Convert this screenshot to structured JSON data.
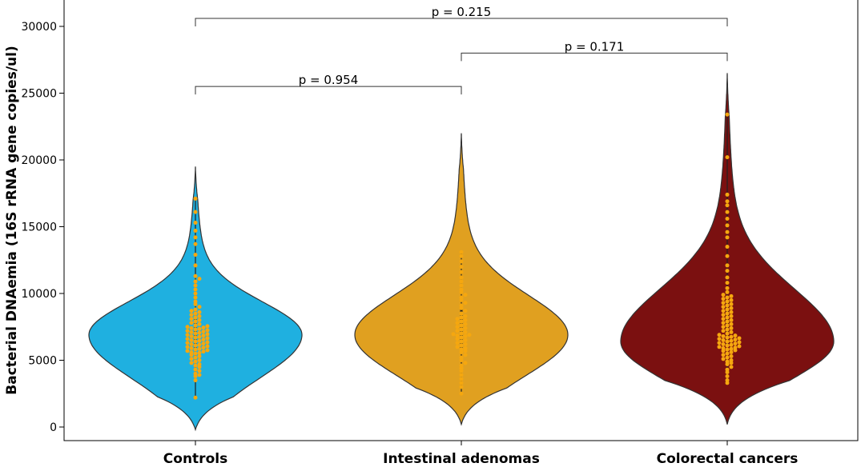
{
  "chart_data": {
    "type": "violin",
    "ylabel": "Bacterial DNAemia (16S rRNA gene copies/ul)",
    "xlabel": "",
    "ylim": [
      -500,
      32000
    ],
    "yticks": [
      0,
      5000,
      10000,
      15000,
      20000,
      25000,
      30000
    ],
    "ytick_labels": [
      "0",
      "5000",
      "10000",
      "15000",
      "20000",
      "25000",
      "30000"
    ],
    "categories": [
      "Controls",
      "Intestinal adenomas",
      "Colorectal cancers"
    ],
    "grid": false,
    "groups": [
      {
        "name": "Controls",
        "color": "#1fb0e0",
        "point_color": "#f5a70f",
        "range": [
          -200,
          19500
        ],
        "mode": 6900,
        "points": [
          2200,
          3500,
          3800,
          3900,
          4000,
          4200,
          4300,
          4500,
          4600,
          4700,
          4800,
          4900,
          5000,
          5100,
          5200,
          5300,
          5400,
          5500,
          5550,
          5600,
          5650,
          5700,
          5750,
          5800,
          5850,
          5900,
          5950,
          6000,
          6050,
          6100,
          6150,
          6200,
          6250,
          6300,
          6350,
          6400,
          6450,
          6500,
          6550,
          6600,
          6650,
          6700,
          6750,
          6800,
          6850,
          6900,
          6950,
          7000,
          7050,
          7100,
          7150,
          7200,
          7250,
          7300,
          7350,
          7400,
          7450,
          7500,
          7550,
          7600,
          7700,
          7800,
          7900,
          8000,
          8100,
          8200,
          8300,
          8400,
          8500,
          8600,
          8700,
          8800,
          9000,
          9200,
          9400,
          9700,
          10000,
          10300,
          10600,
          10900,
          11100,
          11300,
          12100,
          12900,
          13700,
          14200,
          14700,
          15300,
          16100,
          17100
        ]
      },
      {
        "name": "Intestinal adenomas",
        "color": "#e0a020",
        "point_color": "#f5a70f",
        "range": [
          200,
          22000
        ],
        "mode": 6900,
        "points": [
          2500,
          3000,
          3300,
          3600,
          3900,
          4200,
          4400,
          4600,
          4800,
          5000,
          5200,
          5400,
          5600,
          5700,
          5800,
          5900,
          6000,
          6100,
          6200,
          6300,
          6400,
          6500,
          6600,
          6700,
          6800,
          6850,
          6900,
          6950,
          7000,
          7100,
          7200,
          7300,
          7400,
          7500,
          7600,
          7700,
          7800,
          7900,
          8000,
          8100,
          8200,
          8300,
          8500,
          8700,
          8900,
          9100,
          9300,
          9500,
          9700,
          9900,
          10100,
          10300,
          10600,
          10900,
          11200,
          11600,
          12000,
          12400,
          12800,
          13100
        ]
      },
      {
        "name": "Colorectal cancers",
        "color": "#7b1010",
        "point_color": "#f5a70f",
        "range": [
          200,
          26500
        ],
        "mode": 6400,
        "points": [
          3300,
          3500,
          3800,
          4100,
          4300,
          4500,
          4700,
          4800,
          4900,
          5000,
          5100,
          5200,
          5300,
          5400,
          5500,
          5600,
          5700,
          5750,
          5800,
          5850,
          5900,
          5950,
          6000,
          6050,
          6100,
          6150,
          6200,
          6250,
          6300,
          6350,
          6400,
          6450,
          6500,
          6550,
          6600,
          6650,
          6700,
          6750,
          6800,
          6850,
          6900,
          7000,
          7100,
          7200,
          7300,
          7400,
          7500,
          7600,
          7700,
          7800,
          7900,
          8000,
          8100,
          8200,
          8300,
          8400,
          8500,
          8600,
          8700,
          8800,
          8900,
          9000,
          9100,
          9200,
          9300,
          9400,
          9500,
          9600,
          9700,
          9800,
          9900,
          10100,
          10400,
          10800,
          11200,
          11700,
          12100,
          12800,
          13500,
          14200,
          14600,
          15100,
          15600,
          16100,
          16600,
          16900,
          17400,
          20200,
          23400
        ]
      }
    ],
    "annotations": [
      {
        "from": 0,
        "to": 1,
        "y": 25500,
        "label": "p = 0.954"
      },
      {
        "from": 1,
        "to": 2,
        "y": 28000,
        "label": "p = 0.171"
      },
      {
        "from": 0,
        "to": 2,
        "y": 30600,
        "label": "p = 0.215"
      }
    ]
  }
}
